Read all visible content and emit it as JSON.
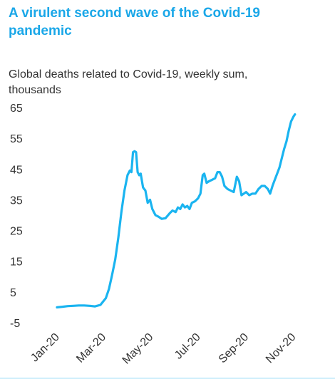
{
  "header": {
    "title_line1": "A virulent second wave of the Covid-19",
    "title_line2": "pandemic"
  },
  "colors": {
    "title": "#1aa7e8",
    "series": "#1ab4f0",
    "text": "#333333"
  },
  "chart_data": {
    "type": "line",
    "title": "A virulent second wave of the Covid-19 pandemic",
    "subtitle_line1": "Global deaths related to Covid-19, weekly sum,",
    "subtitle_line2": "thousands",
    "xlabel": "",
    "ylabel": "",
    "ylim": [
      -5,
      65
    ],
    "yticks": [
      65,
      55,
      45,
      35,
      25,
      15,
      5,
      -5
    ],
    "xlim": [
      "2020-01-01",
      "2020-11-28"
    ],
    "xticks": [
      {
        "date": "2020-01-01",
        "label": "Jan-20"
      },
      {
        "date": "2020-03-01",
        "label": "Mar-20"
      },
      {
        "date": "2020-05-01",
        "label": "May-20"
      },
      {
        "date": "2020-07-01",
        "label": "Jul-20"
      },
      {
        "date": "2020-09-01",
        "label": "Sep-20"
      },
      {
        "date": "2020-11-01",
        "label": "Nov-20"
      }
    ],
    "grid": false,
    "legend": "none",
    "series": [
      {
        "points": [
          [
            "2020-01-01",
            0.0
          ],
          [
            "2020-01-08",
            0.2
          ],
          [
            "2020-01-15",
            0.4
          ],
          [
            "2020-01-22",
            0.5
          ],
          [
            "2020-01-29",
            0.6
          ],
          [
            "2020-02-05",
            0.6
          ],
          [
            "2020-02-12",
            0.5
          ],
          [
            "2020-02-19",
            0.3
          ],
          [
            "2020-02-26",
            0.8
          ],
          [
            "2020-03-04",
            3.0
          ],
          [
            "2020-03-08",
            6.0
          ],
          [
            "2020-03-12",
            10.5
          ],
          [
            "2020-03-16",
            15.5
          ],
          [
            "2020-03-20",
            22.5
          ],
          [
            "2020-03-24",
            31.0
          ],
          [
            "2020-03-28",
            38.0
          ],
          [
            "2020-04-01",
            43.0
          ],
          [
            "2020-04-04",
            44.5
          ],
          [
            "2020-04-06",
            44.0
          ],
          [
            "2020-04-08",
            50.5
          ],
          [
            "2020-04-10",
            50.8
          ],
          [
            "2020-04-12",
            50.5
          ],
          [
            "2020-04-14",
            44.0
          ],
          [
            "2020-04-16",
            43.0
          ],
          [
            "2020-04-18",
            43.5
          ],
          [
            "2020-04-21",
            39.0
          ],
          [
            "2020-04-24",
            38.0
          ],
          [
            "2020-04-27",
            34.0
          ],
          [
            "2020-04-30",
            35.0
          ],
          [
            "2020-05-03",
            32.0
          ],
          [
            "2020-05-07",
            30.0
          ],
          [
            "2020-05-11",
            29.5
          ],
          [
            "2020-05-15",
            28.8
          ],
          [
            "2020-05-20",
            29.0
          ],
          [
            "2020-05-25",
            30.5
          ],
          [
            "2020-05-29",
            31.5
          ],
          [
            "2020-06-02",
            31.0
          ],
          [
            "2020-06-05",
            32.5
          ],
          [
            "2020-06-08",
            32.0
          ],
          [
            "2020-06-11",
            33.5
          ],
          [
            "2020-06-14",
            32.5
          ],
          [
            "2020-06-17",
            33.0
          ],
          [
            "2020-06-20",
            32.0
          ],
          [
            "2020-06-23",
            34.0
          ],
          [
            "2020-06-27",
            34.5
          ],
          [
            "2020-07-01",
            35.5
          ],
          [
            "2020-07-04",
            37.0
          ],
          [
            "2020-07-07",
            43.0
          ],
          [
            "2020-07-09",
            43.5
          ],
          [
            "2020-07-12",
            40.5
          ],
          [
            "2020-07-15",
            41.0
          ],
          [
            "2020-07-19",
            41.5
          ],
          [
            "2020-07-23",
            42.0
          ],
          [
            "2020-07-26",
            44.0
          ],
          [
            "2020-07-29",
            44.0
          ],
          [
            "2020-08-01",
            42.5
          ],
          [
            "2020-08-04",
            39.5
          ],
          [
            "2020-08-08",
            38.5
          ],
          [
            "2020-08-12",
            38.0
          ],
          [
            "2020-08-16",
            37.5
          ],
          [
            "2020-08-20",
            42.5
          ],
          [
            "2020-08-23",
            41.0
          ],
          [
            "2020-08-26",
            36.5
          ],
          [
            "2020-08-29",
            37.0
          ],
          [
            "2020-09-01",
            37.5
          ],
          [
            "2020-09-05",
            36.5
          ],
          [
            "2020-09-09",
            37.0
          ],
          [
            "2020-09-13",
            37.0
          ],
          [
            "2020-09-17",
            38.5
          ],
          [
            "2020-09-21",
            39.5
          ],
          [
            "2020-09-25",
            39.5
          ],
          [
            "2020-09-29",
            38.5
          ],
          [
            "2020-10-02",
            37.0
          ],
          [
            "2020-10-05",
            39.5
          ],
          [
            "2020-10-08",
            41.5
          ],
          [
            "2020-10-11",
            43.5
          ],
          [
            "2020-10-14",
            45.5
          ],
          [
            "2020-10-17",
            48.5
          ],
          [
            "2020-10-20",
            51.5
          ],
          [
            "2020-10-23",
            54.0
          ],
          [
            "2020-10-26",
            57.5
          ],
          [
            "2020-10-29",
            60.5
          ],
          [
            "2020-11-01",
            62.0
          ],
          [
            "2020-11-03",
            62.8
          ]
        ]
      }
    ]
  }
}
